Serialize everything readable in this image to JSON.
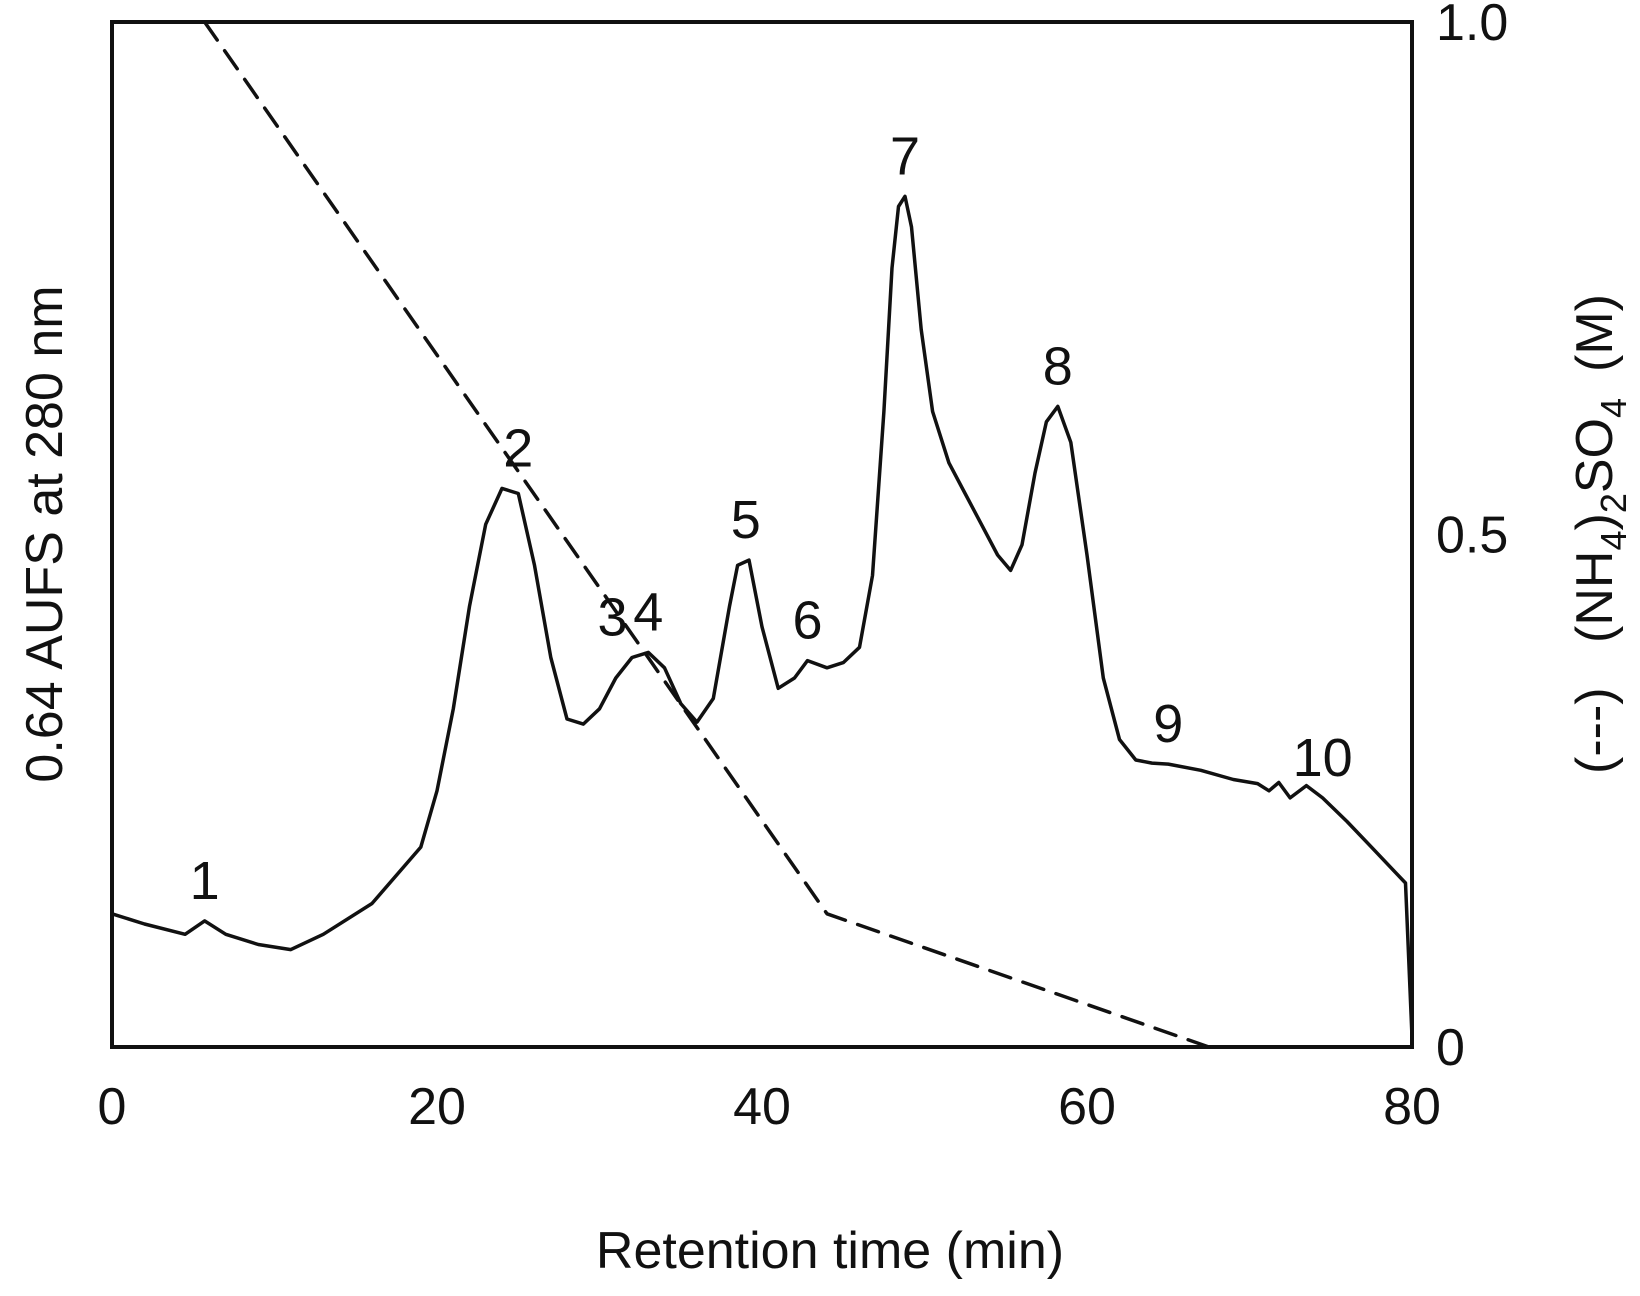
{
  "chart_data": {
    "type": "line",
    "xlabel": "Retention time (min)",
    "ylabel_left": "0.64 AUFS at 280 nm",
    "ylabel_right_prefix": "(---)",
    "ylabel_right": {
      "open": "(NH",
      "sub1": "4",
      "mid": ")",
      "sub2": "2",
      "tail": "SO",
      "sub3": "4",
      "unit": "(M)"
    },
    "xlim": [
      0,
      80
    ],
    "ylim_right": [
      0,
      1
    ],
    "ylim_left": [
      0,
      1
    ],
    "x_ticks": [
      {
        "value": 0,
        "label": "0"
      },
      {
        "value": 20,
        "label": "20"
      },
      {
        "value": 40,
        "label": "40"
      },
      {
        "value": 60,
        "label": "60"
      },
      {
        "value": 80,
        "label": "80"
      }
    ],
    "y_right_ticks": [
      {
        "value": 0,
        "label": "0"
      },
      {
        "value": 0.5,
        "label": "0.5"
      },
      {
        "value": 1.0,
        "label": "1.0"
      }
    ],
    "series": [
      {
        "style": "solid",
        "axis": "left",
        "points": [
          [
            0,
            0.13
          ],
          [
            2,
            0.12
          ],
          [
            4.5,
            0.11
          ],
          [
            5.7,
            0.123
          ],
          [
            7,
            0.11
          ],
          [
            9,
            0.1
          ],
          [
            11,
            0.095
          ],
          [
            13,
            0.11
          ],
          [
            16,
            0.14
          ],
          [
            19,
            0.195
          ],
          [
            20,
            0.25
          ],
          [
            21,
            0.33
          ],
          [
            22,
            0.43
          ],
          [
            23,
            0.51
          ],
          [
            24,
            0.545
          ],
          [
            25,
            0.54
          ],
          [
            26,
            0.47
          ],
          [
            27,
            0.38
          ],
          [
            28,
            0.32
          ],
          [
            29,
            0.315
          ],
          [
            30,
            0.33
          ],
          [
            31,
            0.36
          ],
          [
            32,
            0.38
          ],
          [
            33,
            0.385
          ],
          [
            34,
            0.37
          ],
          [
            35,
            0.335
          ],
          [
            36,
            0.317
          ],
          [
            37,
            0.34
          ],
          [
            38,
            0.43
          ],
          [
            38.5,
            0.47
          ],
          [
            39.2,
            0.475
          ],
          [
            40,
            0.41
          ],
          [
            41,
            0.35
          ],
          [
            42,
            0.36
          ],
          [
            42.8,
            0.377
          ],
          [
            44,
            0.37
          ],
          [
            45,
            0.375
          ],
          [
            46,
            0.39
          ],
          [
            46.8,
            0.46
          ],
          [
            47.5,
            0.62
          ],
          [
            48,
            0.76
          ],
          [
            48.4,
            0.82
          ],
          [
            48.8,
            0.83
          ],
          [
            49.2,
            0.8
          ],
          [
            49.8,
            0.7
          ],
          [
            50.5,
            0.62
          ],
          [
            51.5,
            0.57
          ],
          [
            52.5,
            0.54
          ],
          [
            53.5,
            0.51
          ],
          [
            54.5,
            0.48
          ],
          [
            55.3,
            0.465
          ],
          [
            56,
            0.49
          ],
          [
            56.8,
            0.56
          ],
          [
            57.5,
            0.61
          ],
          [
            58.2,
            0.625
          ],
          [
            59,
            0.59
          ],
          [
            60,
            0.48
          ],
          [
            61,
            0.36
          ],
          [
            62,
            0.3
          ],
          [
            63,
            0.28
          ],
          [
            64,
            0.277
          ],
          [
            65,
            0.276
          ],
          [
            67,
            0.27
          ],
          [
            69,
            0.261
          ],
          [
            70.5,
            0.257
          ],
          [
            71.2,
            0.25
          ],
          [
            71.8,
            0.258
          ],
          [
            72.5,
            0.243
          ],
          [
            73.5,
            0.255
          ],
          [
            74.5,
            0.243
          ],
          [
            76,
            0.22
          ],
          [
            77.5,
            0.195
          ],
          [
            79,
            0.17
          ],
          [
            79.6,
            0.16
          ],
          [
            80,
            0.01
          ]
        ]
      },
      {
        "style": "dashed",
        "axis": "right",
        "points": [
          [
            5.7,
            1.0
          ],
          [
            44,
            0.13
          ],
          [
            67.5,
            0.0
          ]
        ]
      }
    ],
    "peaks": [
      {
        "label": "1",
        "x": 5.7,
        "y": 0.123
      },
      {
        "label": "2",
        "x": 25.0,
        "y": 0.545
      },
      {
        "label": "3",
        "x": 30.8,
        "y": 0.38
      },
      {
        "label": "4",
        "x": 33.0,
        "y": 0.385
      },
      {
        "label": "5",
        "x": 39.0,
        "y": 0.475
      },
      {
        "label": "6",
        "x": 42.8,
        "y": 0.377
      },
      {
        "label": "7",
        "x": 48.8,
        "y": 0.83
      },
      {
        "label": "8",
        "x": 58.2,
        "y": 0.625
      },
      {
        "label": "9",
        "x": 65.0,
        "y": 0.276
      },
      {
        "label": "10",
        "x": 74.5,
        "y": 0.243
      }
    ],
    "grid": false,
    "legend": "none"
  }
}
